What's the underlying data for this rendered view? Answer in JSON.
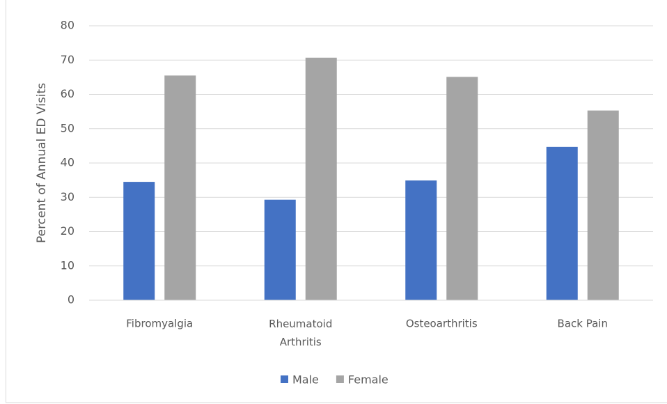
{
  "chart_data": {
    "type": "bar",
    "y_label": "Percent of Annual ED Visits",
    "categories": [
      "Fibromyalgia",
      "Rheumatoid Arthritis",
      "Osteoarthritis",
      "Back Pain"
    ],
    "series": [
      {
        "name": "Male",
        "color": "#4472c4",
        "values": [
          34.5,
          29.3,
          34.9,
          44.7
        ]
      },
      {
        "name": "Female",
        "color": "#a5a5a5",
        "values": [
          65.5,
          70.7,
          65.1,
          55.3
        ]
      }
    ],
    "ylim": [
      0,
      80
    ],
    "yticks": [
      0,
      10,
      20,
      30,
      40,
      50,
      60,
      70,
      80
    ],
    "grid": true,
    "legend": "bottom"
  }
}
